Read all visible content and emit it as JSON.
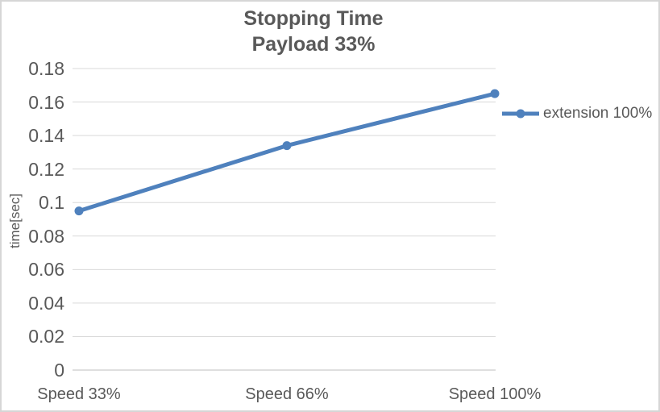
{
  "chart": {
    "title_lines": [
      "Stopping Time",
      "Payload 33%"
    ],
    "y_axis_title": "time[sec]",
    "legend_label": "extension 100%"
  },
  "chart_data": {
    "type": "line",
    "title": "Stopping Time",
    "subtitle": "Payload 33%",
    "categories": [
      "Speed 33%",
      "Speed 66%",
      "Speed 100%"
    ],
    "series": [
      {
        "name": "extension 100%",
        "values": [
          0.095,
          0.134,
          0.165
        ]
      }
    ],
    "xlabel": "",
    "ylabel": "time[sec]",
    "ylim": [
      0,
      0.18
    ],
    "ytick_step": 0.02,
    "ytick_labels": [
      "0",
      "0.02",
      "0.04",
      "0.06",
      "0.08",
      "0.1",
      "0.12",
      "0.14",
      "0.16",
      "0.18"
    ],
    "grid": "horizontal",
    "legend_position": "right",
    "marker": "circle",
    "colors": {
      "series": "#4F81BD",
      "gridline": "#D9D9D9",
      "axis_line": "#BFBFBF",
      "text": "#595959",
      "background": "#FFFFFF",
      "border": "#D6D6D6"
    }
  }
}
